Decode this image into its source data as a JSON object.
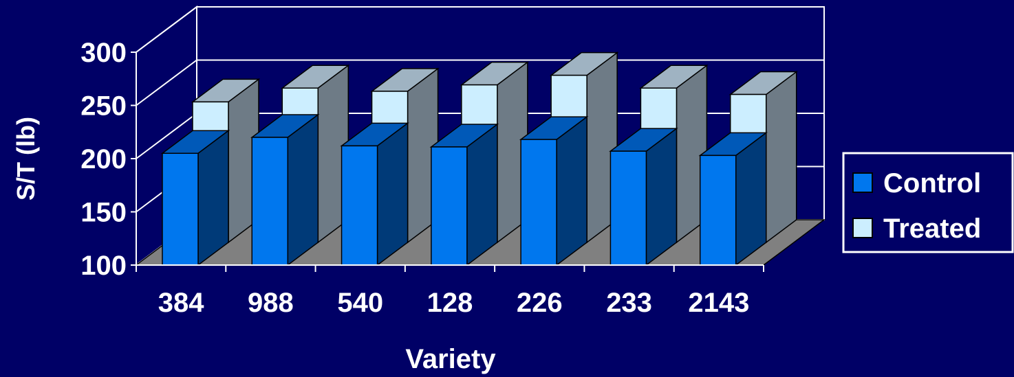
{
  "chart_data": {
    "type": "bar",
    "categories": [
      "384",
      "988",
      "540",
      "128",
      "226",
      "233",
      "2143"
    ],
    "series": [
      {
        "name": "Control",
        "values": [
          205,
          220,
          212,
          211,
          218,
          207,
          203
        ]
      },
      {
        "name": "Treated",
        "values": [
          232,
          245,
          242,
          248,
          257,
          245,
          239
        ]
      }
    ],
    "xlabel": "Variety",
    "ylabel": "S/T (lb)",
    "ylim": [
      100,
      300
    ],
    "yticks": [
      "100",
      "150",
      "200",
      "250",
      "300"
    ],
    "grid": true,
    "legend": "right",
    "colors": {
      "background": "#000066",
      "control_front": "#0077ee",
      "control_side": "#003a78",
      "control_top": "#0059b8",
      "treated_front": "#cceeff",
      "treated_side": "#6e7b86",
      "treated_top": "#9fb3c2",
      "floor": "#808080"
    }
  }
}
